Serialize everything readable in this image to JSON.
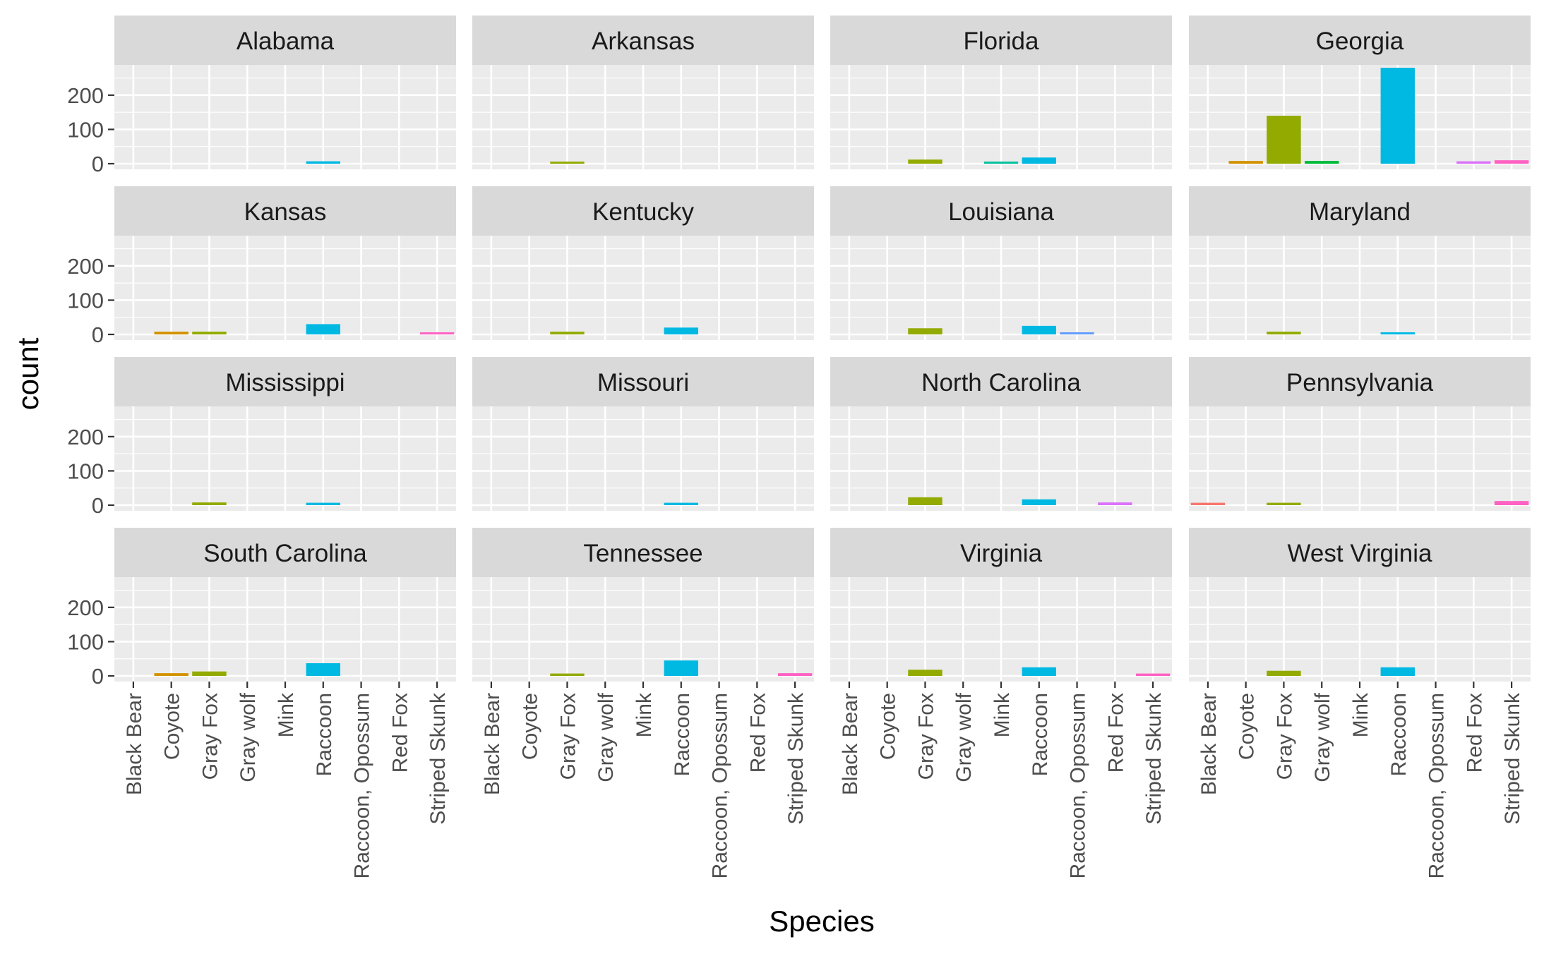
{
  "chart_data": {
    "type": "bar",
    "facet_layout": "4x4 grid",
    "title": "",
    "xlabel": "Species",
    "ylabel": "count",
    "ylim": [
      0,
      280
    ],
    "yticks": [
      0,
      100,
      200
    ],
    "grid": true,
    "legend": "none",
    "categories": [
      "Black Bear",
      "Coyote",
      "Gray Fox",
      "Gray wolf",
      "Mink",
      "Raccoon",
      "Raccoon, Opossum",
      "Red Fox",
      "Striped Skunk"
    ],
    "category_colors": [
      "#F8766D",
      "#D39200",
      "#93AA00",
      "#00BA38",
      "#00C19F",
      "#00B9E3",
      "#619CFF",
      "#DB72FB",
      "#FF61C3"
    ],
    "panel_background": "#EBEBEB",
    "strip_background": "#D9D9D9",
    "facets": [
      {
        "name": "Alabama",
        "values": [
          0,
          0,
          0,
          0,
          0,
          7,
          0,
          0,
          0
        ]
      },
      {
        "name": "Arkansas",
        "values": [
          0,
          0,
          3,
          0,
          0,
          0,
          0,
          0,
          0
        ]
      },
      {
        "name": "Florida",
        "values": [
          0,
          0,
          12,
          0,
          5,
          18,
          0,
          0,
          0
        ]
      },
      {
        "name": "Georgia",
        "values": [
          0,
          8,
          140,
          8,
          0,
          280,
          0,
          7,
          10
        ]
      },
      {
        "name": "Kansas",
        "values": [
          0,
          8,
          8,
          0,
          0,
          30,
          0,
          0,
          5
        ]
      },
      {
        "name": "Kentucky",
        "values": [
          0,
          0,
          8,
          0,
          0,
          20,
          0,
          0,
          0
        ]
      },
      {
        "name": "Louisiana",
        "values": [
          0,
          0,
          18,
          0,
          0,
          25,
          5,
          0,
          0
        ]
      },
      {
        "name": "Maryland",
        "values": [
          0,
          0,
          8,
          0,
          0,
          5,
          0,
          0,
          0
        ]
      },
      {
        "name": "Mississippi",
        "values": [
          0,
          0,
          8,
          0,
          0,
          7,
          0,
          0,
          0
        ]
      },
      {
        "name": "Missouri",
        "values": [
          0,
          0,
          0,
          0,
          0,
          7,
          0,
          0,
          0
        ]
      },
      {
        "name": "North Carolina",
        "values": [
          0,
          0,
          23,
          0,
          0,
          17,
          0,
          8,
          0
        ]
      },
      {
        "name": "Pennsylvania",
        "values": [
          7,
          0,
          7,
          0,
          0,
          0,
          0,
          0,
          12
        ]
      },
      {
        "name": "South Carolina",
        "values": [
          0,
          8,
          13,
          0,
          0,
          37,
          0,
          0,
          0
        ]
      },
      {
        "name": "Tennessee",
        "values": [
          0,
          0,
          7,
          0,
          0,
          45,
          0,
          0,
          8
        ]
      },
      {
        "name": "Virginia",
        "values": [
          0,
          0,
          18,
          0,
          0,
          25,
          0,
          0,
          7
        ]
      },
      {
        "name": "West Virginia",
        "values": [
          0,
          0,
          15,
          0,
          0,
          25,
          0,
          0,
          0
        ]
      }
    ]
  }
}
